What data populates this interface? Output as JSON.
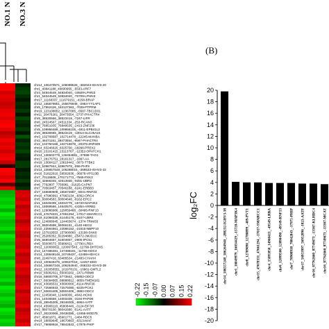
{
  "chart_data": [
    {
      "type": "heatmap",
      "columns": [
        "NO.1 N",
        "NO.3 N"
      ],
      "colorbar_ticks": [
        "-0.22",
        "-0.15",
        "-0.07",
        "0.00",
        "0.07",
        "0.15",
        "0.22"
      ],
      "rows": [
        {
          "label": "chr14_106470571_106088528_-382043-IGHV3-20",
          "values": [
            0.22,
            -0.03
          ]
        },
        {
          "label": "chr1_40841188_40830955_-5533-ARF7",
          "values": [
            0.22,
            -0.05
          ]
        },
        {
          "label": "chr4_54944549_54934040_-10509-LPHN3",
          "values": [
            0.18,
            -0.06
          ]
        },
        {
          "label": "chr1_54044549_53934040_-70709-LPHN3",
          "values": [
            0.2,
            -0.04
          ]
        },
        {
          "label": "chr17_11168337_111679151_-4158-BRAP",
          "values": [
            0.19,
            -0.02
          ]
        },
        {
          "label": "chr12_155679551_155676948_-2964-YY1AP1",
          "values": [
            0.17,
            -0.04
          ]
        },
        {
          "label": "chr5_17552426_182127363_-7039-PTPRM",
          "values": [
            0.18,
            -0.03
          ]
        },
        {
          "label": "chr19_123108652_12367085_-5587-TBC1D31",
          "values": [
            0.2,
            -0.05
          ]
        },
        {
          "label": "chr11_28476281_28473554_-2737-PHACTR4",
          "values": [
            0.21,
            -0.02
          ]
        },
        {
          "label": "chr8_38530666_38523419_-7247-LIFR",
          "values": [
            0.19,
            -0.06
          ]
        },
        {
          "label": "chr6_24514567_24511334_-253-RCAN3",
          "values": [
            0.21,
            -0.04
          ]
        },
        {
          "label": "chr8_76851935_76849535_-2413-ZNF236",
          "values": [
            0.22,
            -0.03
          ]
        },
        {
          "label": "chr5_109956489_109956105_-4911-EPB41L2",
          "values": [
            0.2,
            -0.05
          ]
        },
        {
          "label": "chr5_38530666_38523419_-13014-SLC25A24",
          "values": [
            0.16,
            -0.02
          ]
        },
        {
          "label": "chr3_102708687_102714478_-12245-MANBA",
          "values": [
            0.18,
            -0.07
          ]
        },
        {
          "label": "chr2_48471151_39473554_-9567-PHACTR4",
          "values": [
            0.21,
            -0.03
          ]
        },
        {
          "label": "chr2_102750166_102716678_-20376-ZNF609",
          "values": [
            0.19,
            -0.05
          ]
        },
        {
          "label": "chr14_83246620_8325700_-18296-PREX2",
          "values": [
            0.2,
            -0.04
          ]
        },
        {
          "label": "chr10_23101415_23113767_-12352-OPATCH1",
          "values": [
            0.18,
            -0.06
          ]
        },
        {
          "label": "chr13_136502779_136464881_-37698-TAO1",
          "values": [
            0.2,
            -0.03
          ]
        },
        {
          "label": "chr17_28176751_28161317_-1997-AA",
          "values": [
            0.21,
            -0.02
          ]
        },
        {
          "label": "chr19_13664117_13618442_-3073-TTBK2",
          "values": [
            0.17,
            -0.05
          ]
        },
        {
          "label": "chr3_53987944_53987978_-866-PHF8",
          "values": [
            0.04,
            -0.05
          ]
        },
        {
          "label": "chr14_106657548_106288015_-369533-IGHV3-32",
          "values": [
            0.22,
            -0.02
          ]
        },
        {
          "label": "chr16_51822616_59502636_-36676-VPS13B",
          "values": [
            0.21,
            -0.04
          ]
        },
        {
          "label": "chr7_70115808_170171773_-7565-PXK3",
          "values": [
            0.19,
            -0.03
          ]
        },
        {
          "label": "chr4_42666345_42613930_-9291-UBR2",
          "values": [
            0.22,
            -0.05
          ]
        },
        {
          "label": "chr6_7792807_7756981_-31625-CAPN7",
          "values": [
            0.08,
            -0.02
          ]
        },
        {
          "label": "chr7_70563457_70546188_-6241-ERBB3",
          "values": [
            0.2,
            -0.04
          ]
        },
        {
          "label": "chr7_155680808_155672687_-8041-RNF33",
          "values": [
            -0.15,
            0.18
          ]
        },
        {
          "label": "chr16_47980991_47963134_-8362-ORC4",
          "values": [
            -0.16,
            0.19
          ]
        },
        {
          "label": "chr5_60084583_60004648_-8162-EPC2",
          "values": [
            -0.18,
            0.17
          ]
        },
        {
          "label": "chr1_16049499_16034779_-15720-MAP3K4",
          "values": [
            -0.17,
            0.2
          ]
        },
        {
          "label": "chr1_15069566_14640570_-44354-ARRB1",
          "values": [
            -0.19,
            0.16
          ]
        },
        {
          "label": "chr3_129086986_129059488_-30495-RNF13",
          "values": [
            -0.15,
            0.18
          ]
        },
        {
          "label": "chr15_47678331_47661294_-17017-SMARCC1",
          "values": [
            -0.2,
            0.17
          ]
        },
        {
          "label": "chr19_61068336_61445178_-6107-UBR4",
          "values": [
            -0.18,
            0.19
          ]
        },
        {
          "label": "chr2_124808945_124463674_-1374-TRIM33",
          "values": [
            -0.16,
            0.15
          ]
        },
        {
          "label": "chr2_55004598_55066151_-4140-HEG2",
          "values": [
            -0.17,
            0.18
          ]
        },
        {
          "label": "chr10_22584661_22586152_-21515-NBPF10",
          "values": [
            -0.19,
            0.2
          ]
        },
        {
          "label": "chr9_157919553_157900060_-13198-SNX9",
          "values": [
            -0.15,
            0.17
          ]
        },
        {
          "label": "chr2_25285352_82294880_-25472-JMJD1C",
          "values": [
            -0.2,
            0.16
          ]
        },
        {
          "label": "chr5_55804657_51604657_-2900-IPC51",
          "values": [
            -0.18,
            0.19
          ]
        },
        {
          "label": "chr5_55000573_55986421_-17790-LRBA",
          "values": [
            -0.16,
            0.18
          ]
        },
        {
          "label": "chr12_120080811_120067543_-12799-DHTDX5",
          "values": [
            -0.19,
            0.17
          ]
        },
        {
          "label": "chr2_147486481_147488191_-11766-HDC4",
          "values": [
            -0.17,
            0.2
          ]
        },
        {
          "label": "chr14_128648148_10749437_-12498-HDAC4",
          "values": [
            -0.18,
            0.16
          ]
        },
        {
          "label": "chr8_22497416_63485534_-21483-CHAH4",
          "values": [
            -0.15,
            0.18
          ]
        },
        {
          "label": "chr13_100649475_100637018_-12457-EED",
          "values": [
            -0.2,
            0.17
          ]
        },
        {
          "label": "chr14_106557248_106264940_-268232-IGHV3-38",
          "values": [
            -0.19,
            0.21
          ]
        },
        {
          "label": "chr12_102056551_101978131_-10901-GMTL2",
          "values": [
            -0.16,
            0.18
          ]
        },
        {
          "label": "chr10_65002021_65003202_-1471-RBM8",
          "values": [
            -0.18,
            0.19
          ]
        },
        {
          "label": "chr16_58600705_5773842_-26863-ODC2",
          "values": [
            -0.17,
            0.16
          ]
        },
        {
          "label": "chr17_86094665_88888812_-9859-TMEM181",
          "values": [
            -0.19,
            0.17
          ]
        },
        {
          "label": "chr16_43606531_43600000_-8114-RNF36",
          "values": [
            -0.15,
            0.18
          ]
        },
        {
          "label": "chr17_72566933_72575080_-8225-PCK1",
          "values": [
            -0.2,
            0.2
          ]
        },
        {
          "label": "chr17_50604405_50604406_-3882-ODC2",
          "values": [
            -0.18,
            0.16
          ]
        },
        {
          "label": "chr2_12450048_12446006_-4042-HOX6",
          "values": [
            -0.16,
            0.19
          ]
        },
        {
          "label": "chr1_14046558_14003408_-3194-PAPD6",
          "values": [
            -0.19,
            0.18
          ]
        },
        {
          "label": "chr15_39945305_39346005_-5964-AATF",
          "values": [
            -0.17,
            0.17
          ]
        },
        {
          "label": "chr14_45908110_45908446_-3124-EIF3H",
          "values": [
            -0.15,
            0.2
          ]
        },
        {
          "label": "chr2_88070100_88042680_-6141-AATF",
          "values": [
            -0.2,
            0.16
          ]
        },
        {
          "label": "chr17_30220069_30438385_-13455-MOD75",
          "values": [
            -0.18,
            0.18
          ]
        },
        {
          "label": "chr7_45901871_45901771_-1484-RDC5",
          "values": [
            -0.16,
            0.19
          ]
        },
        {
          "label": "chr14_18859645_18670863_-6313-MAF",
          "values": [
            -0.19,
            0.17
          ]
        },
        {
          "label": "chr17_79868918_79842843_-17975-PHIP",
          "values": [
            -0.17,
            0.2
          ]
        }
      ]
    },
    {
      "type": "bar",
      "panel_label": "(B)",
      "ylabel": "log₂FC",
      "ylim": [
        -20,
        20
      ],
      "yticks": [
        20,
        18,
        16,
        14,
        12,
        10,
        8,
        6,
        4,
        2,
        0,
        -2,
        -4,
        -6,
        -8,
        -10,
        -12,
        -14,
        -16,
        -18,
        -20
      ],
      "categories": [
        "chr14_106557248_106264940_-288232-IGHV3-38",
        "chr1_16049979_16034429_-15720-MAP3K4",
        "chr8_12789090_12780899_-409-PVT1",
        "chr15_47678331_47661294_-17017-SMARCC1",
        "chr4_15095850_14960411_-49549-LRBA",
        "chr6_12099500_12090490_-49549-RNF13",
        "chr7_70908918_70842843_-17975-PHIP",
        "chr17_56953997_56952896_-1821-AATF",
        "chr16_87762660_87749673_-13367-KLHDC4",
        "chr16_87762660_87749673_-13367-MCAT"
      ],
      "values": [
        19.8,
        4.1,
        4.0,
        4.0,
        3.9,
        3.9,
        3.9,
        3.8,
        3.8,
        3.7
      ]
    }
  ]
}
